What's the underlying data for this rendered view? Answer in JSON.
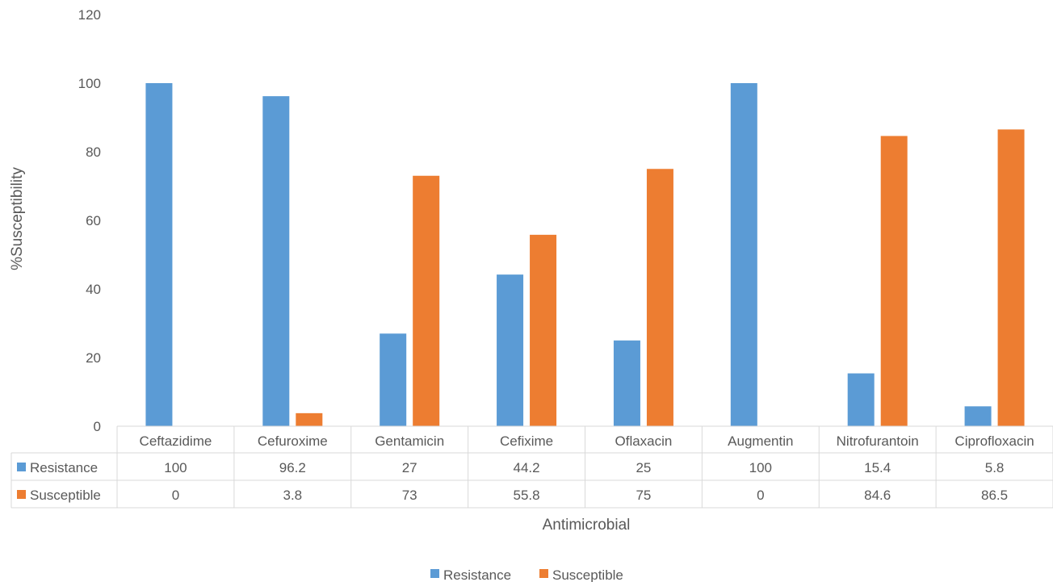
{
  "chart_data": {
    "type": "bar",
    "title": "",
    "xlabel": "Antimicrobial",
    "ylabel": "%Susceptibility",
    "ylim": [
      0,
      120
    ],
    "yticks": [
      0,
      20,
      40,
      60,
      80,
      100,
      120
    ],
    "grid": false,
    "legend_position": "bottom",
    "data_table": true,
    "categories": [
      "Ceftazidime",
      "Cefuroxime",
      "Gentamicin",
      "Cefixime",
      "Oflaxacin",
      "Augmentin",
      "Nitrofurantoin",
      "Ciprofloxacin"
    ],
    "series": [
      {
        "name": "Resistance",
        "color": "#5B9BD5",
        "values": [
          100,
          96.2,
          27,
          44.2,
          25,
          100,
          15.4,
          5.8
        ]
      },
      {
        "name": "Susceptible",
        "color": "#ED7D31",
        "values": [
          0,
          3.8,
          73,
          55.8,
          75,
          0,
          84.6,
          86.5
        ]
      }
    ],
    "table_rows": [
      {
        "label": "Resistance",
        "cells": [
          "100",
          "96.2",
          "27",
          "44.2",
          "25",
          "100",
          "15.4",
          "5.8"
        ]
      },
      {
        "label": "Susceptible",
        "cells": [
          "0",
          "3.8",
          "73",
          "55.8",
          "75",
          "0",
          "84.6",
          "86.5"
        ]
      }
    ]
  }
}
